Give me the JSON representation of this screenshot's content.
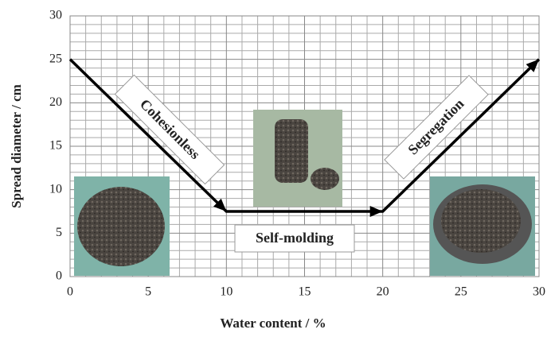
{
  "chart_data": {
    "type": "line",
    "x_label": "Water content / %",
    "y_label": "Spread diameter / cm",
    "x": [
      0,
      10,
      20,
      30
    ],
    "series": [
      {
        "color": "#000000",
        "values": [
          25,
          7.5,
          7.5,
          25
        ]
      }
    ],
    "xlim": [
      0,
      30
    ],
    "ylim": [
      0,
      30
    ],
    "xticks": [
      0,
      5,
      10,
      15,
      20,
      25,
      30
    ],
    "yticks": [
      0,
      5,
      10,
      15,
      20,
      25,
      30
    ],
    "x_minor_grid": [
      1,
      2,
      3,
      4,
      6,
      7,
      8,
      9,
      11,
      12,
      13,
      14,
      16,
      17,
      18,
      19,
      21,
      22,
      23,
      24,
      26,
      27,
      28,
      29
    ],
    "y_minor_grid": [
      1,
      2,
      3,
      4,
      6,
      7,
      8,
      9,
      11,
      12,
      13,
      14,
      16,
      17,
      18,
      19,
      21,
      22,
      23,
      24,
      26,
      27,
      28,
      29
    ],
    "grid": true,
    "annotations": [
      "Cohesionless",
      "Self-molding",
      "Segregation"
    ]
  }
}
